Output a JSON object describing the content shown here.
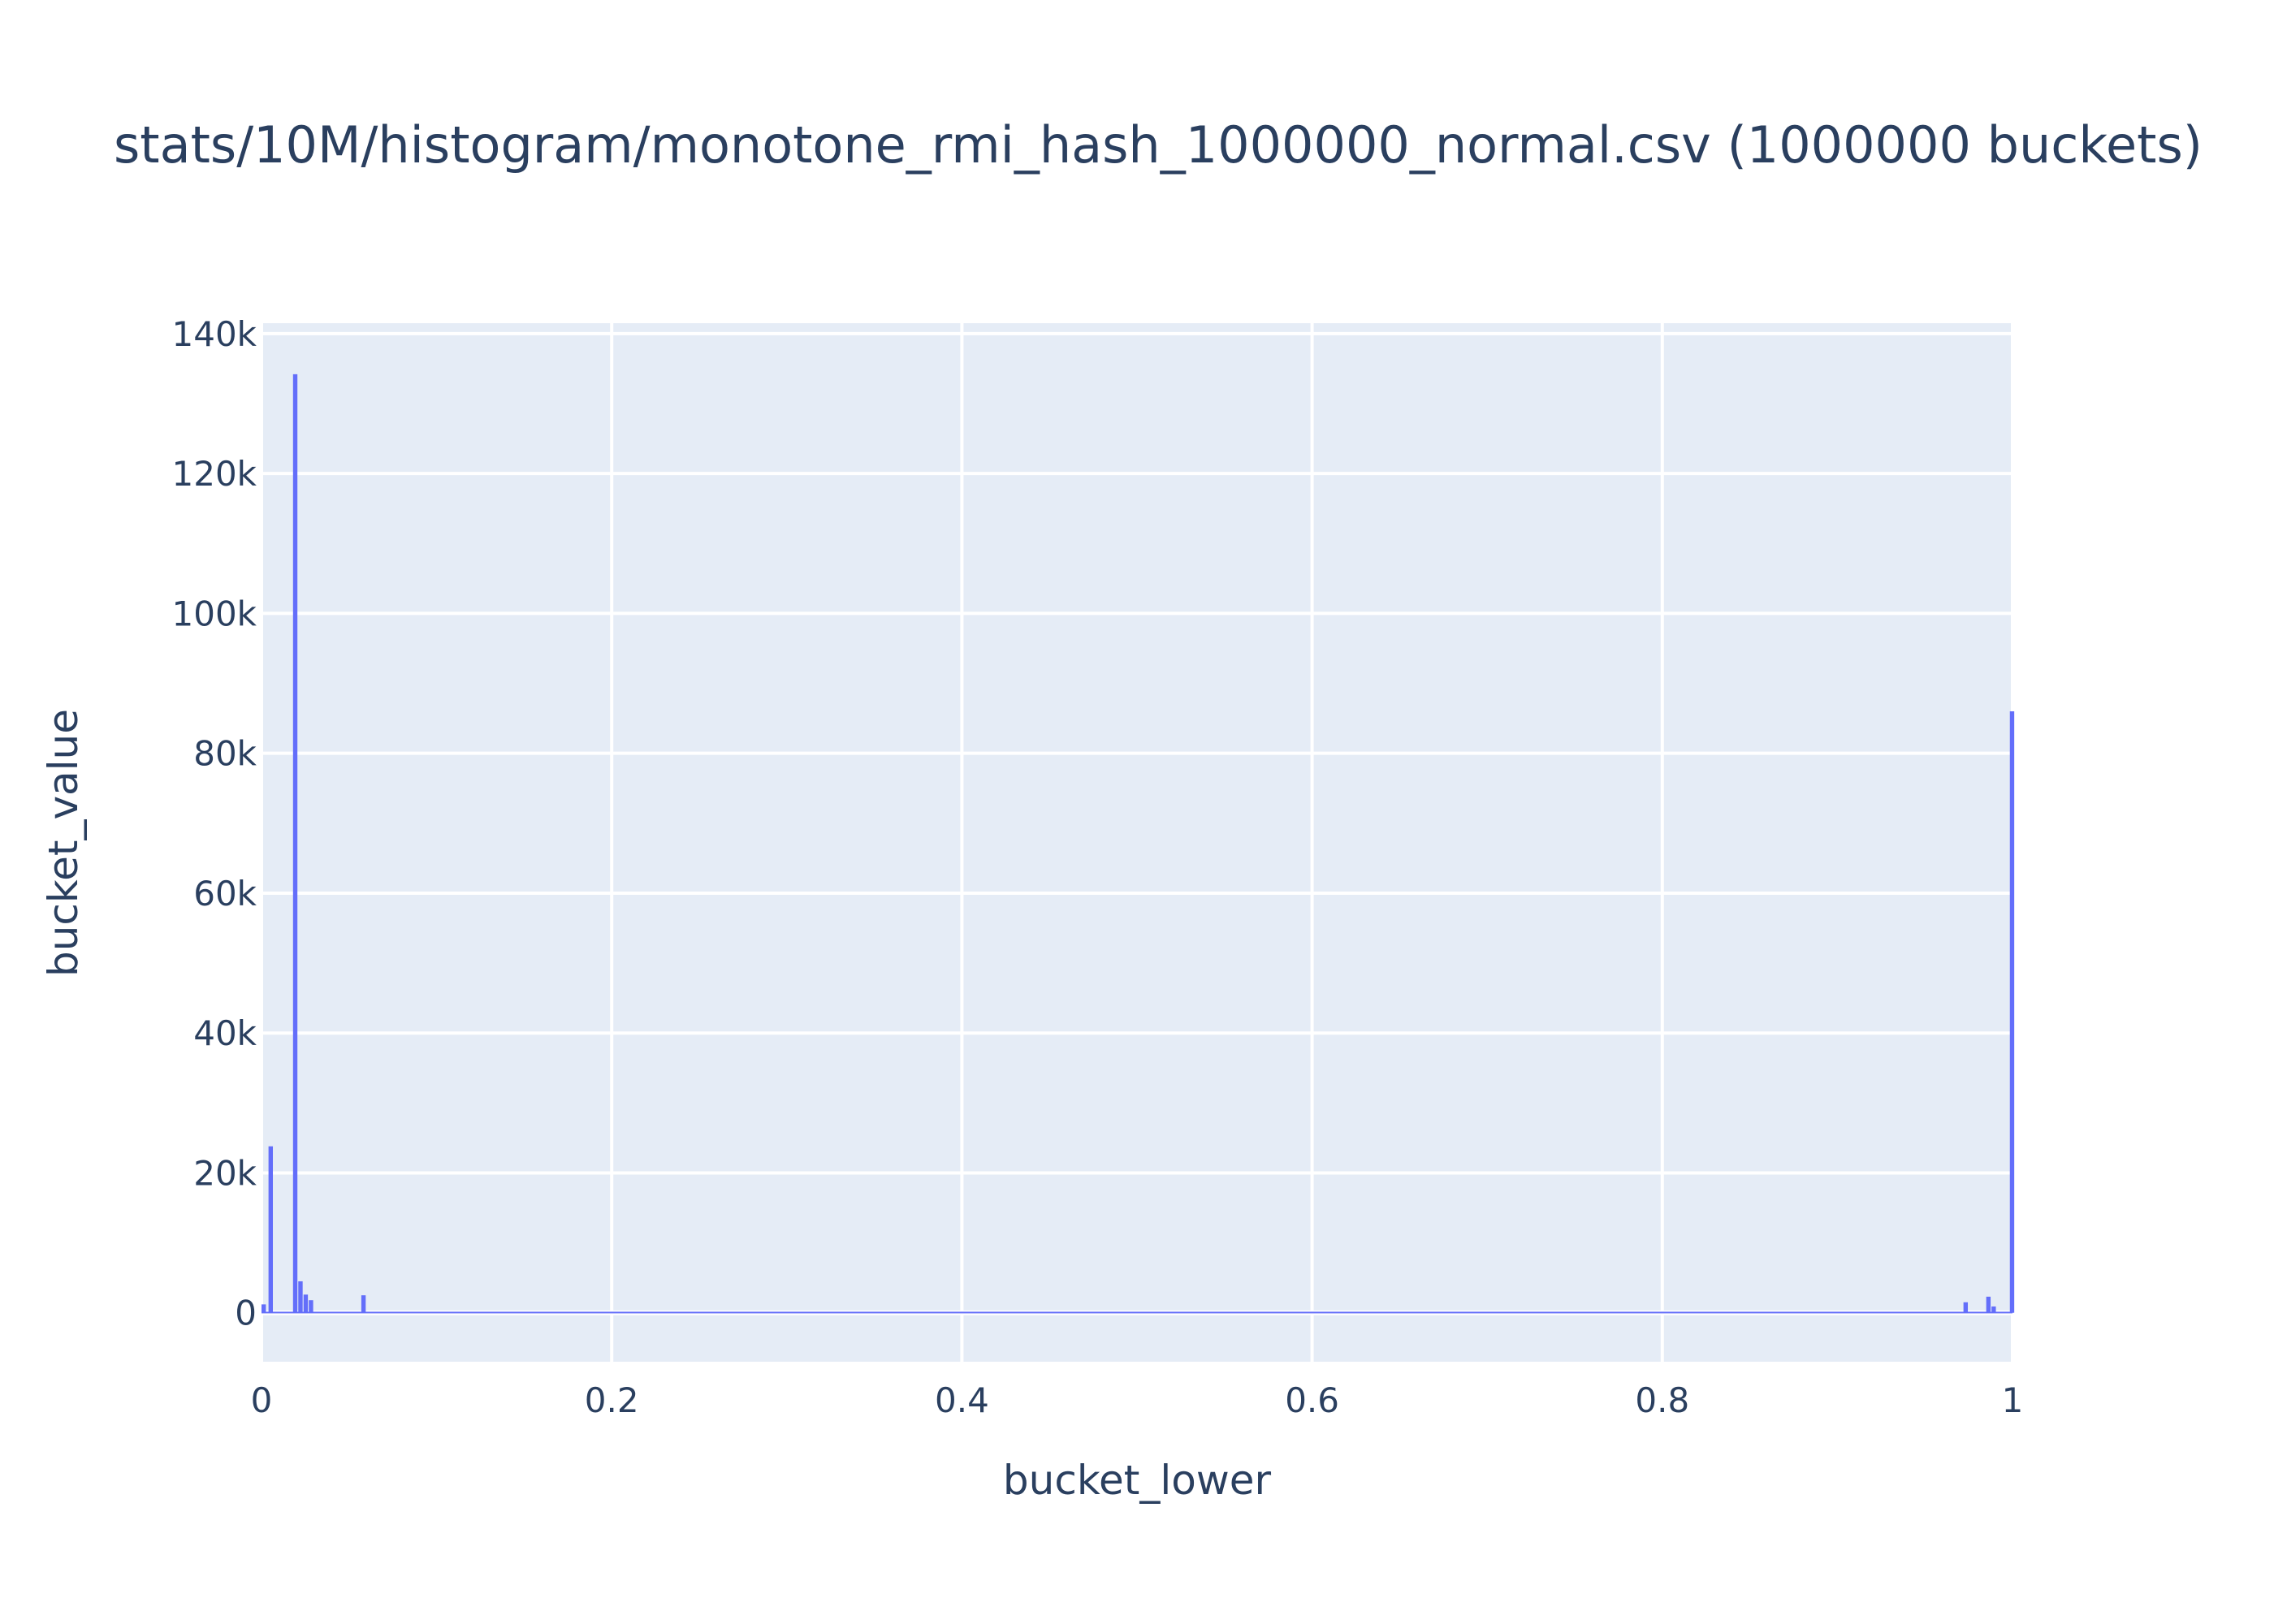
{
  "chart_data": {
    "type": "bar",
    "title": "stats/10M/histogram/monotone_rmi_hash_1000000_normal.csv (1000000 buckets)",
    "xlabel": "bucket_lower",
    "ylabel": "bucket_value",
    "xlim": [
      0,
      1
    ],
    "ylim": [
      -7000,
      141500
    ],
    "x_ticks": [
      0,
      0.2,
      0.4,
      0.6,
      0.8,
      1
    ],
    "x_tick_labels": [
      "0",
      "0.2",
      "0.4",
      "0.6",
      "0.8",
      "1"
    ],
    "y_ticks": [
      0,
      20000,
      40000,
      60000,
      80000,
      100000,
      120000,
      140000
    ],
    "y_tick_labels": [
      "0",
      "20k",
      "40k",
      "60k",
      "80k",
      "100k",
      "120k",
      "140k"
    ],
    "grid": true,
    "bar_color": "#636efa",
    "plot_bgcolor": "#e5ecf6",
    "bin_width": 0.0025,
    "baseline_value": 150,
    "bars": [
      {
        "x": 0.0,
        "y": 1200
      },
      {
        "x": 0.004,
        "y": 23800
      },
      {
        "x": 0.018,
        "y": 134200
      },
      {
        "x": 0.021,
        "y": 4500
      },
      {
        "x": 0.024,
        "y": 2600
      },
      {
        "x": 0.027,
        "y": 1800
      },
      {
        "x": 0.057,
        "y": 2500
      },
      {
        "x": 0.972,
        "y": 1500
      },
      {
        "x": 0.985,
        "y": 2300
      },
      {
        "x": 0.988,
        "y": 900
      },
      {
        "x": 0.9985,
        "y": 86000
      }
    ]
  }
}
